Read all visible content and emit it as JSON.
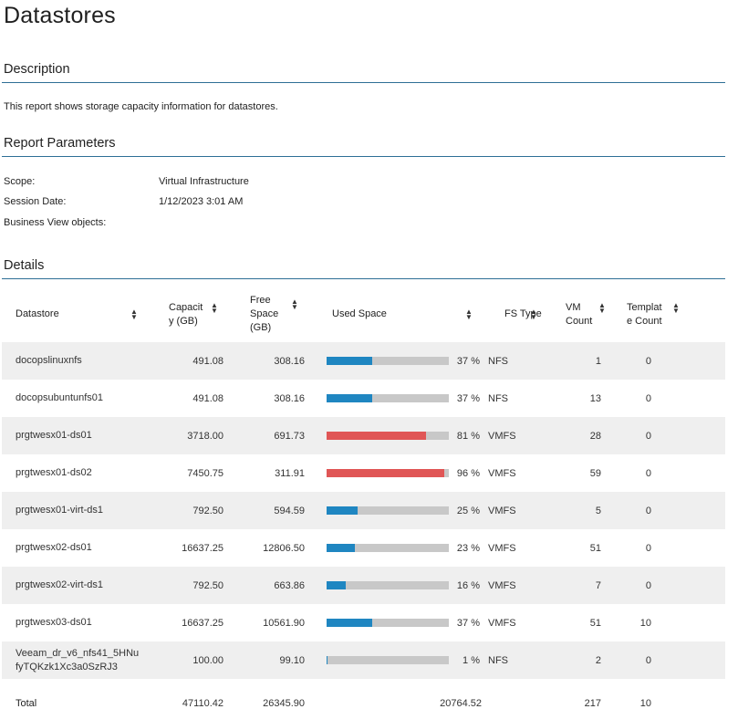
{
  "page_title": "Datastores",
  "description": {
    "heading": "Description",
    "text": "This report shows storage capacity information for datastores."
  },
  "parameters": {
    "heading": "Report Parameters",
    "items": [
      {
        "label": "Scope:",
        "value": "Virtual Infrastructure"
      },
      {
        "label": "Session Date:",
        "value": "1/12/2023 3:01 AM"
      },
      {
        "label": "Business View objects:",
        "value": ""
      }
    ]
  },
  "details": {
    "heading": "Details",
    "columns": {
      "datastore": "Datastore",
      "capacity_l1": "Capacit",
      "capacity_l2": "y (GB)",
      "free_l1": "Free",
      "free_l2": "Space",
      "free_l3": "(GB)",
      "used": "Used Space",
      "fs_type": "FS Type",
      "vm_l1": "VM",
      "vm_l2": "Count",
      "tpl_l1": "Templat",
      "tpl_l2": "e Count"
    },
    "rows": [
      {
        "datastore": "docopslinuxnfs",
        "datastore2": "",
        "capacity": "491.08",
        "free": "308.16",
        "used_pct": 37,
        "used_label": "37 %",
        "fs": "NFS",
        "vm": "1",
        "tpl": "0"
      },
      {
        "datastore": "docopsubuntunfs01",
        "datastore2": "",
        "capacity": "491.08",
        "free": "308.16",
        "used_pct": 37,
        "used_label": "37 %",
        "fs": "NFS",
        "vm": "13",
        "tpl": "0"
      },
      {
        "datastore": "prgtwesx01-ds01",
        "datastore2": "",
        "capacity": "3718.00",
        "free": "691.73",
        "used_pct": 81,
        "used_label": "81 %",
        "fs": "VMFS",
        "vm": "28",
        "tpl": "0"
      },
      {
        "datastore": "prgtwesx01-ds02",
        "datastore2": "",
        "capacity": "7450.75",
        "free": "311.91",
        "used_pct": 96,
        "used_label": "96 %",
        "fs": "VMFS",
        "vm": "59",
        "tpl": "0"
      },
      {
        "datastore": "prgtwesx01-virt-ds1",
        "datastore2": "",
        "capacity": "792.50",
        "free": "594.59",
        "used_pct": 25,
        "used_label": "25 %",
        "fs": "VMFS",
        "vm": "5",
        "tpl": "0"
      },
      {
        "datastore": "prgtwesx02-ds01",
        "datastore2": "",
        "capacity": "16637.25",
        "free": "12806.50",
        "used_pct": 23,
        "used_label": "23 %",
        "fs": "VMFS",
        "vm": "51",
        "tpl": "0"
      },
      {
        "datastore": "prgtwesx02-virt-ds1",
        "datastore2": "",
        "capacity": "792.50",
        "free": "663.86",
        "used_pct": 16,
        "used_label": "16 %",
        "fs": "VMFS",
        "vm": "7",
        "tpl": "0"
      },
      {
        "datastore": "prgtwesx03-ds01",
        "datastore2": "",
        "capacity": "16637.25",
        "free": "10561.90",
        "used_pct": 37,
        "used_label": "37 %",
        "fs": "VMFS",
        "vm": "51",
        "tpl": "10"
      },
      {
        "datastore": "Veeam_dr_v6_nfs41_5HNu",
        "datastore2": "fyTQKzk1Xc3a0SzRJ3",
        "capacity": "100.00",
        "free": "99.10",
        "used_pct": 1,
        "used_label": "1 %",
        "fs": "NFS",
        "vm": "2",
        "tpl": "0"
      }
    ],
    "total": {
      "label": "Total",
      "capacity": "47110.42",
      "free": "26345.90",
      "used": "20764.52",
      "vm": "217",
      "tpl": "10"
    }
  },
  "colors": {
    "normal_fill": "#1f86c1",
    "high_fill": "#e05656",
    "bar_bg": "#c8c8c8",
    "rule": "#2e6f96"
  }
}
